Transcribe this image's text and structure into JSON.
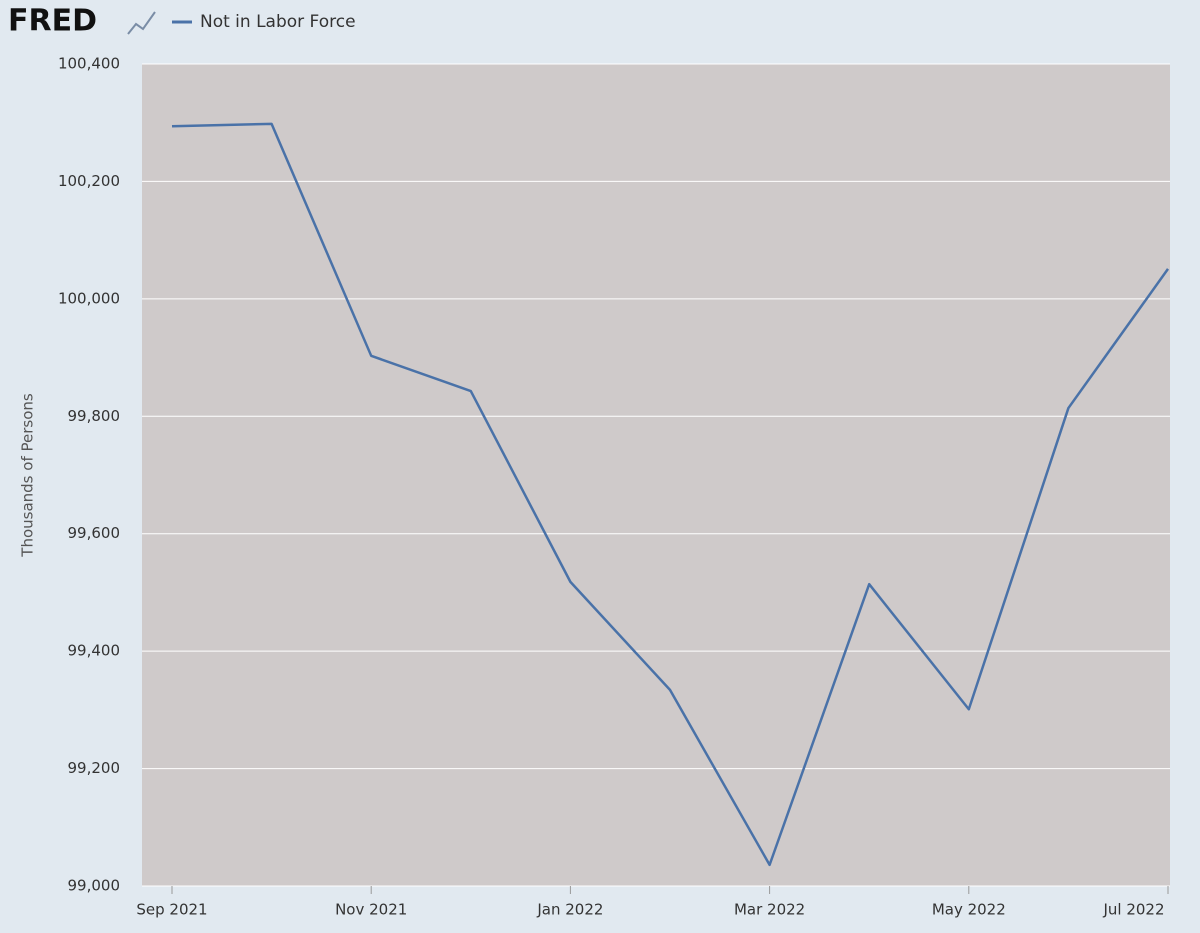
{
  "logo": "FRED",
  "chart_data": {
    "type": "line",
    "x": [
      "2021-09",
      "2021-10",
      "2021-11",
      "2021-12",
      "2022-01",
      "2022-02",
      "2022-03",
      "2022-04",
      "2022-05",
      "2022-06",
      "2022-07"
    ],
    "series": [
      {
        "name": "Not in Labor Force",
        "color": "#4a72a8",
        "values": [
          100294,
          100298,
          99903,
          99843,
          99518,
          99334,
          99036,
          99514,
          99301,
          99814,
          100051
        ]
      }
    ],
    "xticks": [
      {
        "value": "2021-09",
        "label": "Sep 2021"
      },
      {
        "value": "2021-11",
        "label": "Nov 2021"
      },
      {
        "value": "2022-01",
        "label": "Jan 2022"
      },
      {
        "value": "2022-03",
        "label": "Mar 2022"
      },
      {
        "value": "2022-05",
        "label": "May 2022"
      },
      {
        "value": "2022-07",
        "label": "Jul 2022"
      }
    ],
    "y_label": "Thousands of Persons",
    "ylim": [
      99000,
      100400
    ],
    "yticks": [
      {
        "value": 99000,
        "label": "99,000"
      },
      {
        "value": 99200,
        "label": "99,200"
      },
      {
        "value": 99400,
        "label": "99,400"
      },
      {
        "value": 99600,
        "label": "99,600"
      },
      {
        "value": 99800,
        "label": "99,800"
      },
      {
        "value": 100000,
        "label": "100,000"
      },
      {
        "value": 100200,
        "label": "100,200"
      },
      {
        "value": 100400,
        "label": "100,400"
      }
    ],
    "grid": true
  }
}
